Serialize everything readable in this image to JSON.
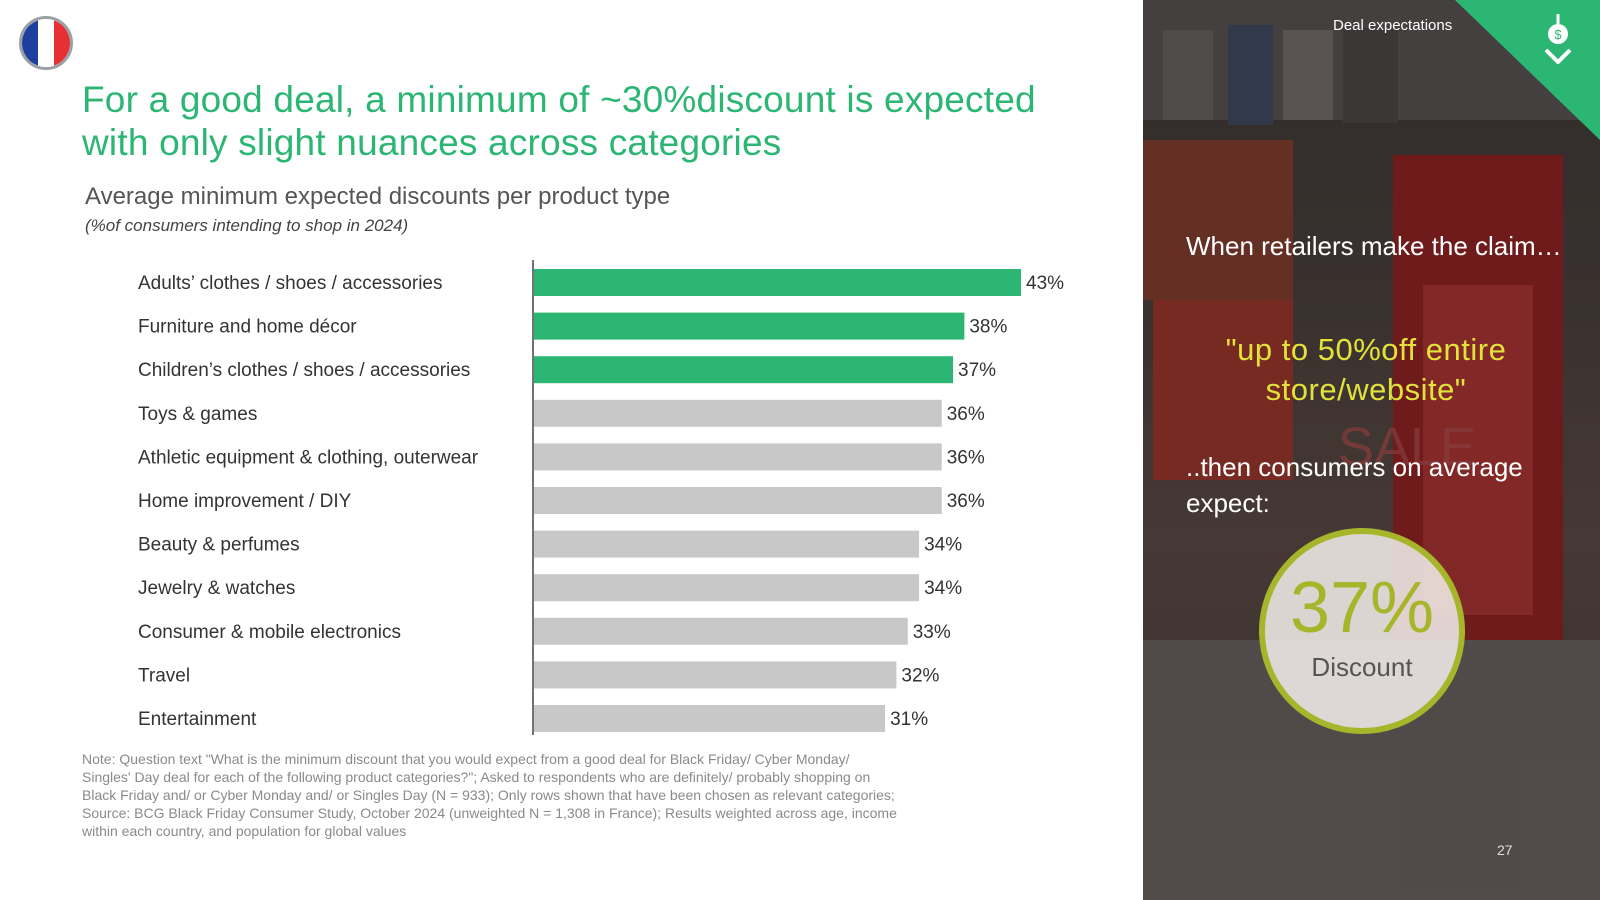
{
  "header": {
    "title_line1": "For a good deal, a minimum of ~30%discount is expected",
    "title_line2": "with only slight nuances across categories",
    "flag_colors": [
      "#1f3f9e",
      "#ffffff",
      "#e63033"
    ]
  },
  "chart_data": {
    "type": "bar",
    "orientation": "horizontal",
    "title": "Average minimum expected discounts per product type",
    "subtitle": "(%of consumers intending to shop in 2024)",
    "categories": [
      "Adults’ clothes /  shoes /  accessories",
      "Furniture and home décor",
      "Children’s clothes /  shoes /  accessories",
      "Toys & games",
      "Athletic equipment & clothing, outerwear",
      "Home improvement /  DIY",
      "Beauty & perfumes",
      "Jewelry & watches",
      "Consumer & mobile electronics",
      "Travel",
      "Entertainment"
    ],
    "values": [
      43,
      38,
      37,
      36,
      36,
      36,
      34,
      34,
      33,
      32,
      31
    ],
    "value_labels": [
      "43%",
      "38%",
      "37%",
      "36%",
      "36%",
      "36%",
      "34%",
      "34%",
      "33%",
      "32%",
      "31%"
    ],
    "highlight_count": 3,
    "colors": {
      "highlight": "#2bb673",
      "default": "#c8c8c8",
      "axis": "#444444",
      "label": "#333333"
    },
    "xlim": [
      0,
      43
    ]
  },
  "notes": {
    "lines": [
      "Note: Question text \"What is the minimum discount that you would expect from a good deal for Black Friday/ Cyber Monday/",
      "Singles' Day deal for each of the following product categories?\"; Asked to respondents who are definitely/ probably shopping on",
      "Black Friday and/ or Cyber Monday and/ or Singles Day (N = 933); Only rows shown that have been chosen as relevant categories;",
      "Source: BCG Black Friday Consumer Study, October 2024 (unweighted N = 1,308 in France); Results weighted across age, income",
      "within each country, and population for global values"
    ]
  },
  "sidebar": {
    "section_label": "Deal expectations",
    "claim_text": "When retailers make the claim…",
    "quote_text": "\"up to 50%off entire store/website\"",
    "then_text": "..then consumers on average expect:",
    "big_value": "37%",
    "big_label": "Discount",
    "accent": "#a7b52b",
    "quote_color": "#e2e23a",
    "corner_color": "#2bb673"
  },
  "page_number": "27"
}
